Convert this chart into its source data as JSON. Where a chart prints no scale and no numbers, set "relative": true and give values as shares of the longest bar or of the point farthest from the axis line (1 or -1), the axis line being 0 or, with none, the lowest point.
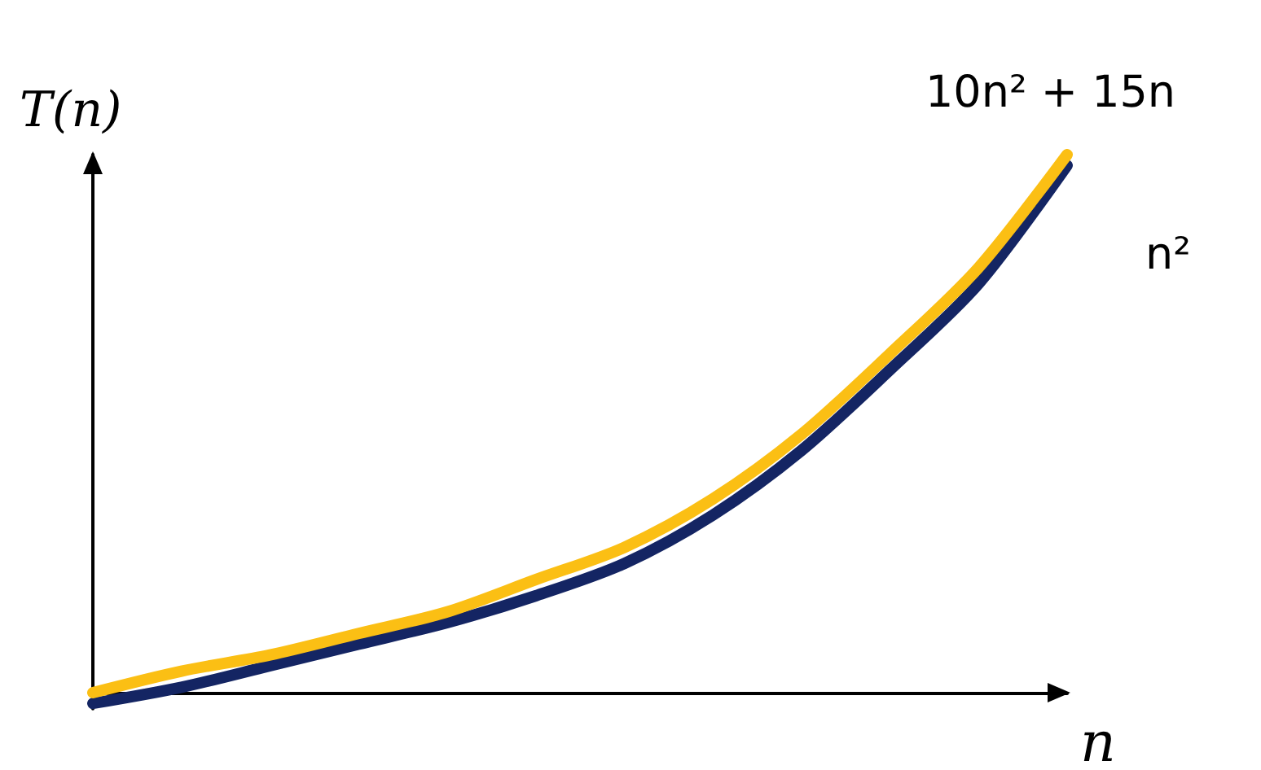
{
  "chart_data": {
    "type": "line",
    "relative": true,
    "xlabel": "n",
    "ylabel": "T(n)",
    "categories": [
      null,
      null,
      null,
      null,
      null,
      null,
      null,
      null,
      null,
      null,
      null,
      null
    ],
    "series": [
      {
        "name": "n²",
        "color": "#142563",
        "values": [
          -0.02,
          0.01,
          0.05,
          0.09,
          0.13,
          0.18,
          0.24,
          0.33,
          0.45,
          0.6,
          0.76,
          0.98
        ]
      },
      {
        "name": "10n² + 15n",
        "color": "#fbbf14",
        "values": [
          0,
          0.04,
          0.07,
          0.11,
          0.15,
          0.21,
          0.27,
          0.36,
          0.48,
          0.63,
          0.79,
          1
        ]
      }
    ],
    "grid": false,
    "legend": false,
    "marker": "none",
    "line_style": "solid"
  }
}
